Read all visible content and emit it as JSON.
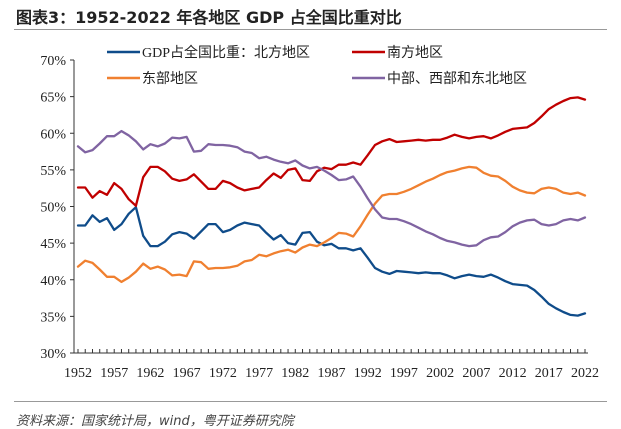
{
  "title": "图表3：1952-2022 年各地区 GDP 占全国比重对比",
  "source": "资料来源：国家统计局，wind，粤开证券研究院",
  "chart_data": {
    "type": "line",
    "title": "图表3：1952-2022 年各地区 GDP 占全国比重对比",
    "xlabel": "",
    "ylabel": "",
    "ylim": [
      30,
      70
    ],
    "xlim": [
      1952,
      2022
    ],
    "grid": false,
    "legend_position": "top",
    "y_ticks": [
      "30%",
      "35%",
      "40%",
      "45%",
      "50%",
      "55%",
      "60%",
      "65%",
      "70%"
    ],
    "x_ticks": [
      "1952",
      "1957",
      "1962",
      "1967",
      "1972",
      "1977",
      "1982",
      "1987",
      "1992",
      "1997",
      "2002",
      "2007",
      "2012",
      "2017",
      "2022"
    ],
    "x": [
      1952,
      1953,
      1954,
      1955,
      1956,
      1957,
      1958,
      1959,
      1960,
      1961,
      1962,
      1963,
      1964,
      1965,
      1966,
      1967,
      1968,
      1969,
      1970,
      1971,
      1972,
      1973,
      1974,
      1975,
      1976,
      1977,
      1978,
      1979,
      1980,
      1981,
      1982,
      1983,
      1984,
      1985,
      1986,
      1987,
      1988,
      1989,
      1990,
      1991,
      1992,
      1993,
      1994,
      1995,
      1996,
      1997,
      1998,
      1999,
      2000,
      2001,
      2002,
      2003,
      2004,
      2005,
      2006,
      2007,
      2008,
      2009,
      2010,
      2011,
      2012,
      2013,
      2014,
      2015,
      2016,
      2017,
      2018,
      2019,
      2020,
      2021,
      2022
    ],
    "series": [
      {
        "name": "GDP占全国比重：北方地区",
        "color": "#0f4c8a",
        "values": [
          47.4,
          47.4,
          48.8,
          47.9,
          48.4,
          46.8,
          47.6,
          49.0,
          49.9,
          46.0,
          44.6,
          44.6,
          45.2,
          46.2,
          46.5,
          46.3,
          45.6,
          46.6,
          47.6,
          47.6,
          46.5,
          46.8,
          47.4,
          47.8,
          47.6,
          47.4,
          46.4,
          45.5,
          46.1,
          45.0,
          44.8,
          46.4,
          46.5,
          45.2,
          44.7,
          44.9,
          44.3,
          44.3,
          44.0,
          44.3,
          43.0,
          41.6,
          41.1,
          40.8,
          41.2,
          41.1,
          41.0,
          40.9,
          41.0,
          40.9,
          40.9,
          40.6,
          40.2,
          40.5,
          40.7,
          40.5,
          40.4,
          40.7,
          40.3,
          39.8,
          39.4,
          39.3,
          39.2,
          38.6,
          37.7,
          36.7,
          36.1,
          35.6,
          35.2,
          35.1,
          35.4
        ]
      },
      {
        "name": "南方地区",
        "color": "#c00000",
        "values": [
          52.6,
          52.6,
          51.2,
          52.1,
          51.6,
          53.2,
          52.4,
          51.0,
          50.1,
          54.0,
          55.4,
          55.4,
          54.8,
          53.8,
          53.5,
          53.7,
          54.4,
          53.4,
          52.4,
          52.4,
          53.5,
          53.2,
          52.6,
          52.2,
          52.4,
          52.6,
          53.6,
          54.5,
          53.9,
          55.0,
          55.2,
          53.6,
          53.5,
          54.8,
          55.3,
          55.1,
          55.7,
          55.7,
          56.0,
          55.7,
          57.0,
          58.4,
          58.9,
          59.2,
          58.8,
          58.9,
          59.0,
          59.1,
          59.0,
          59.1,
          59.1,
          59.4,
          59.8,
          59.5,
          59.3,
          59.5,
          59.6,
          59.3,
          59.7,
          60.2,
          60.6,
          60.7,
          60.8,
          61.4,
          62.3,
          63.3,
          63.9,
          64.4,
          64.8,
          64.9,
          64.6
        ]
      },
      {
        "name": "东部地区",
        "color": "#f08030",
        "values": [
          41.8,
          42.6,
          42.3,
          41.4,
          40.4,
          40.4,
          39.7,
          40.3,
          41.1,
          42.2,
          41.5,
          41.8,
          41.4,
          40.6,
          40.7,
          40.5,
          42.5,
          42.4,
          41.5,
          41.6,
          41.6,
          41.7,
          41.9,
          42.5,
          42.7,
          43.4,
          43.2,
          43.6,
          43.9,
          44.1,
          43.7,
          44.4,
          44.8,
          44.6,
          45.1,
          45.7,
          46.4,
          46.3,
          45.9,
          47.3,
          48.9,
          50.4,
          51.5,
          51.7,
          51.7,
          52.0,
          52.4,
          52.9,
          53.4,
          53.8,
          54.3,
          54.7,
          54.9,
          55.2,
          55.4,
          55.3,
          54.6,
          54.2,
          54.1,
          53.5,
          52.7,
          52.2,
          51.9,
          51.8,
          52.4,
          52.6,
          52.4,
          51.9,
          51.7,
          51.9,
          51.5
        ]
      },
      {
        "name": "中部、西部和东北地区",
        "color": "#8064a2",
        "values": [
          58.2,
          57.4,
          57.7,
          58.6,
          59.6,
          59.6,
          60.3,
          59.7,
          58.9,
          57.8,
          58.5,
          58.2,
          58.6,
          59.4,
          59.3,
          59.5,
          57.5,
          57.6,
          58.5,
          58.4,
          58.4,
          58.3,
          58.1,
          57.5,
          57.3,
          56.6,
          56.8,
          56.4,
          56.1,
          55.9,
          56.3,
          55.6,
          55.2,
          55.4,
          54.9,
          54.3,
          53.6,
          53.7,
          54.1,
          52.7,
          51.1,
          49.6,
          48.5,
          48.3,
          48.3,
          48.0,
          47.6,
          47.1,
          46.6,
          46.2,
          45.7,
          45.3,
          45.1,
          44.8,
          44.6,
          44.7,
          45.4,
          45.8,
          45.9,
          46.5,
          47.3,
          47.8,
          48.1,
          48.2,
          47.6,
          47.4,
          47.6,
          48.1,
          48.3,
          48.1,
          48.5
        ]
      }
    ]
  }
}
